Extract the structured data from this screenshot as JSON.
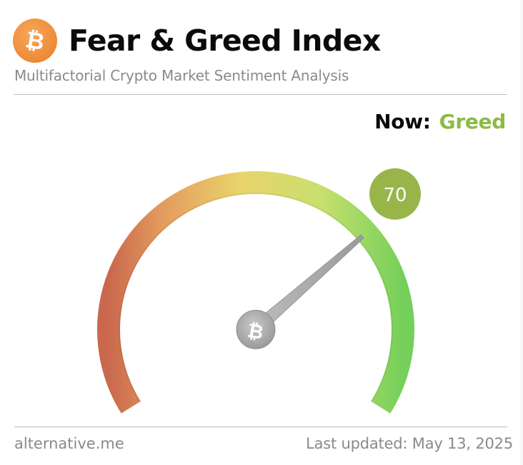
{
  "header": {
    "logo_icon": "bitcoin-icon",
    "title": "Fear & Greed Index",
    "subtitle": "Multifactorial Crypto Market Sentiment Analysis"
  },
  "status": {
    "now_label": "Now:",
    "now_value": "Greed",
    "now_color": "#8bbb45"
  },
  "gauge": {
    "score": "70",
    "score_max": 100,
    "score_badge_color": "#98b54a",
    "needle_icon": "bitcoin-icon",
    "gradient_colors": [
      "#cf6a4e",
      "#e6a75e",
      "#e9d86c",
      "#cfe06f",
      "#7fd35f"
    ]
  },
  "footer": {
    "source": "alternative.me",
    "last_updated": "Last updated: May 13, 2025"
  }
}
